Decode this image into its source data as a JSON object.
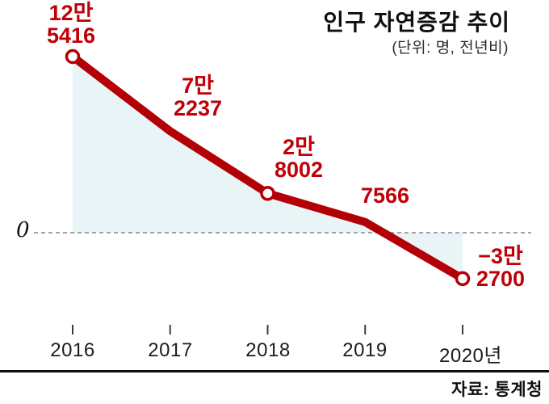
{
  "chart_data": {
    "type": "line",
    "title": "인구 자연증감 추이",
    "unit_note": "(단위: 명, 전년비)",
    "source": "자료: 통계청",
    "categories": [
      "2016",
      "2017",
      "2018",
      "2019",
      "2020년"
    ],
    "values": [
      125416,
      72237,
      28002,
      7566,
      -32700
    ],
    "ylim": [
      -40000,
      135000
    ],
    "zero_label": "0",
    "zero_line": true,
    "legend": "none",
    "grid": "off",
    "marker_indices": [
      0,
      2,
      4
    ],
    "labels": [
      {
        "line1": "12만",
        "line2": "5416"
      },
      {
        "line1": "7만",
        "line2": "2237"
      },
      {
        "line1": "2만",
        "line2": "8002"
      },
      {
        "line1": "7566",
        "line2": ""
      },
      {
        "line1": "−3만",
        "line2": "2700"
      }
    ],
    "colors": {
      "line": "#b20006",
      "label": "#c00007",
      "area": "#e8f4f6",
      "zero_line": "#858585",
      "tick": "#3d3d3d"
    }
  }
}
